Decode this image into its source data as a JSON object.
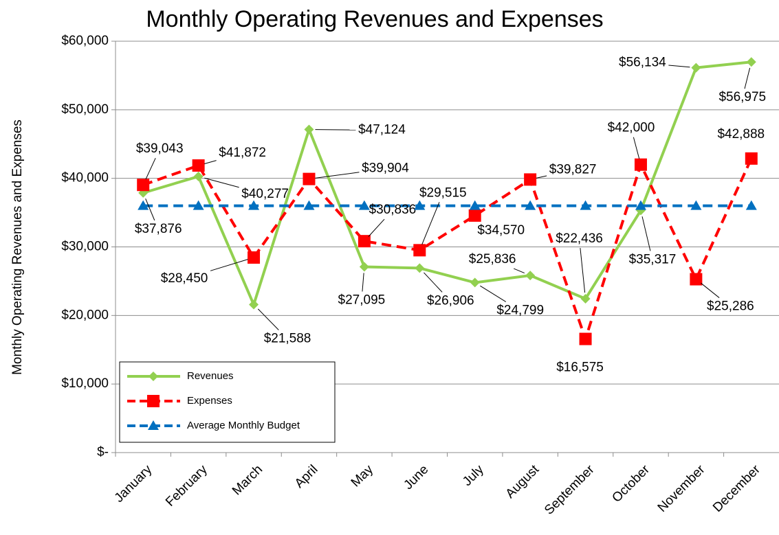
{
  "chart_data": {
    "type": "line",
    "title": "Monthly Operating Revenues and Expenses",
    "y_label": "Monthly Operating Revenues and Expenses",
    "categories": [
      "January",
      "February",
      "March",
      "April",
      "May",
      "June",
      "July",
      "August",
      "September",
      "October",
      "November",
      "December"
    ],
    "series": [
      {
        "name": "Revenues",
        "color": "#92d050",
        "dash": false,
        "marker": "diamond",
        "values": [
          37876,
          40277,
          21588,
          47124,
          27095,
          26906,
          24799,
          25836,
          22436,
          35317,
          56134,
          56975
        ],
        "value_labels": [
          "$37,876",
          "$40,277",
          "$21,588",
          "$47,124",
          "$27,095",
          "$26,906",
          "$24,799",
          "$25,836",
          "$22,436",
          "$35,317",
          "$56,134",
          "$56,975"
        ]
      },
      {
        "name": "Expenses",
        "color": "#ff0000",
        "dash": true,
        "marker": "square",
        "values": [
          39043,
          41872,
          28450,
          39904,
          30836,
          29515,
          34570,
          39827,
          16575,
          42000,
          25286,
          42888
        ],
        "value_labels": [
          "$39,043",
          "$41,872",
          "$28,450",
          "$39,904",
          "$30,836",
          "$29,515",
          "$34,570",
          "$39,827",
          "$16,575",
          "$42,000",
          "$25,286",
          "$42,888"
        ]
      },
      {
        "name": "Average Monthly Budget",
        "color": "#0070c0",
        "dash": true,
        "marker": "triangle",
        "values": [
          36000,
          36000,
          36000,
          36000,
          36000,
          36000,
          36000,
          36000,
          36000,
          36000,
          36000,
          36000
        ]
      }
    ],
    "ylim": [
      0,
      60000
    ],
    "yticks": [
      {
        "value": 0,
        "label": "$-"
      },
      {
        "value": 10000,
        "label": "$10,000"
      },
      {
        "value": 20000,
        "label": "$20,000"
      },
      {
        "value": 30000,
        "label": "$30,000"
      },
      {
        "value": 40000,
        "label": "$40,000"
      },
      {
        "value": 50000,
        "label": "$50,000"
      },
      {
        "value": 60000,
        "label": "$60,000"
      }
    ],
    "grid": true,
    "legend": "lower left"
  }
}
